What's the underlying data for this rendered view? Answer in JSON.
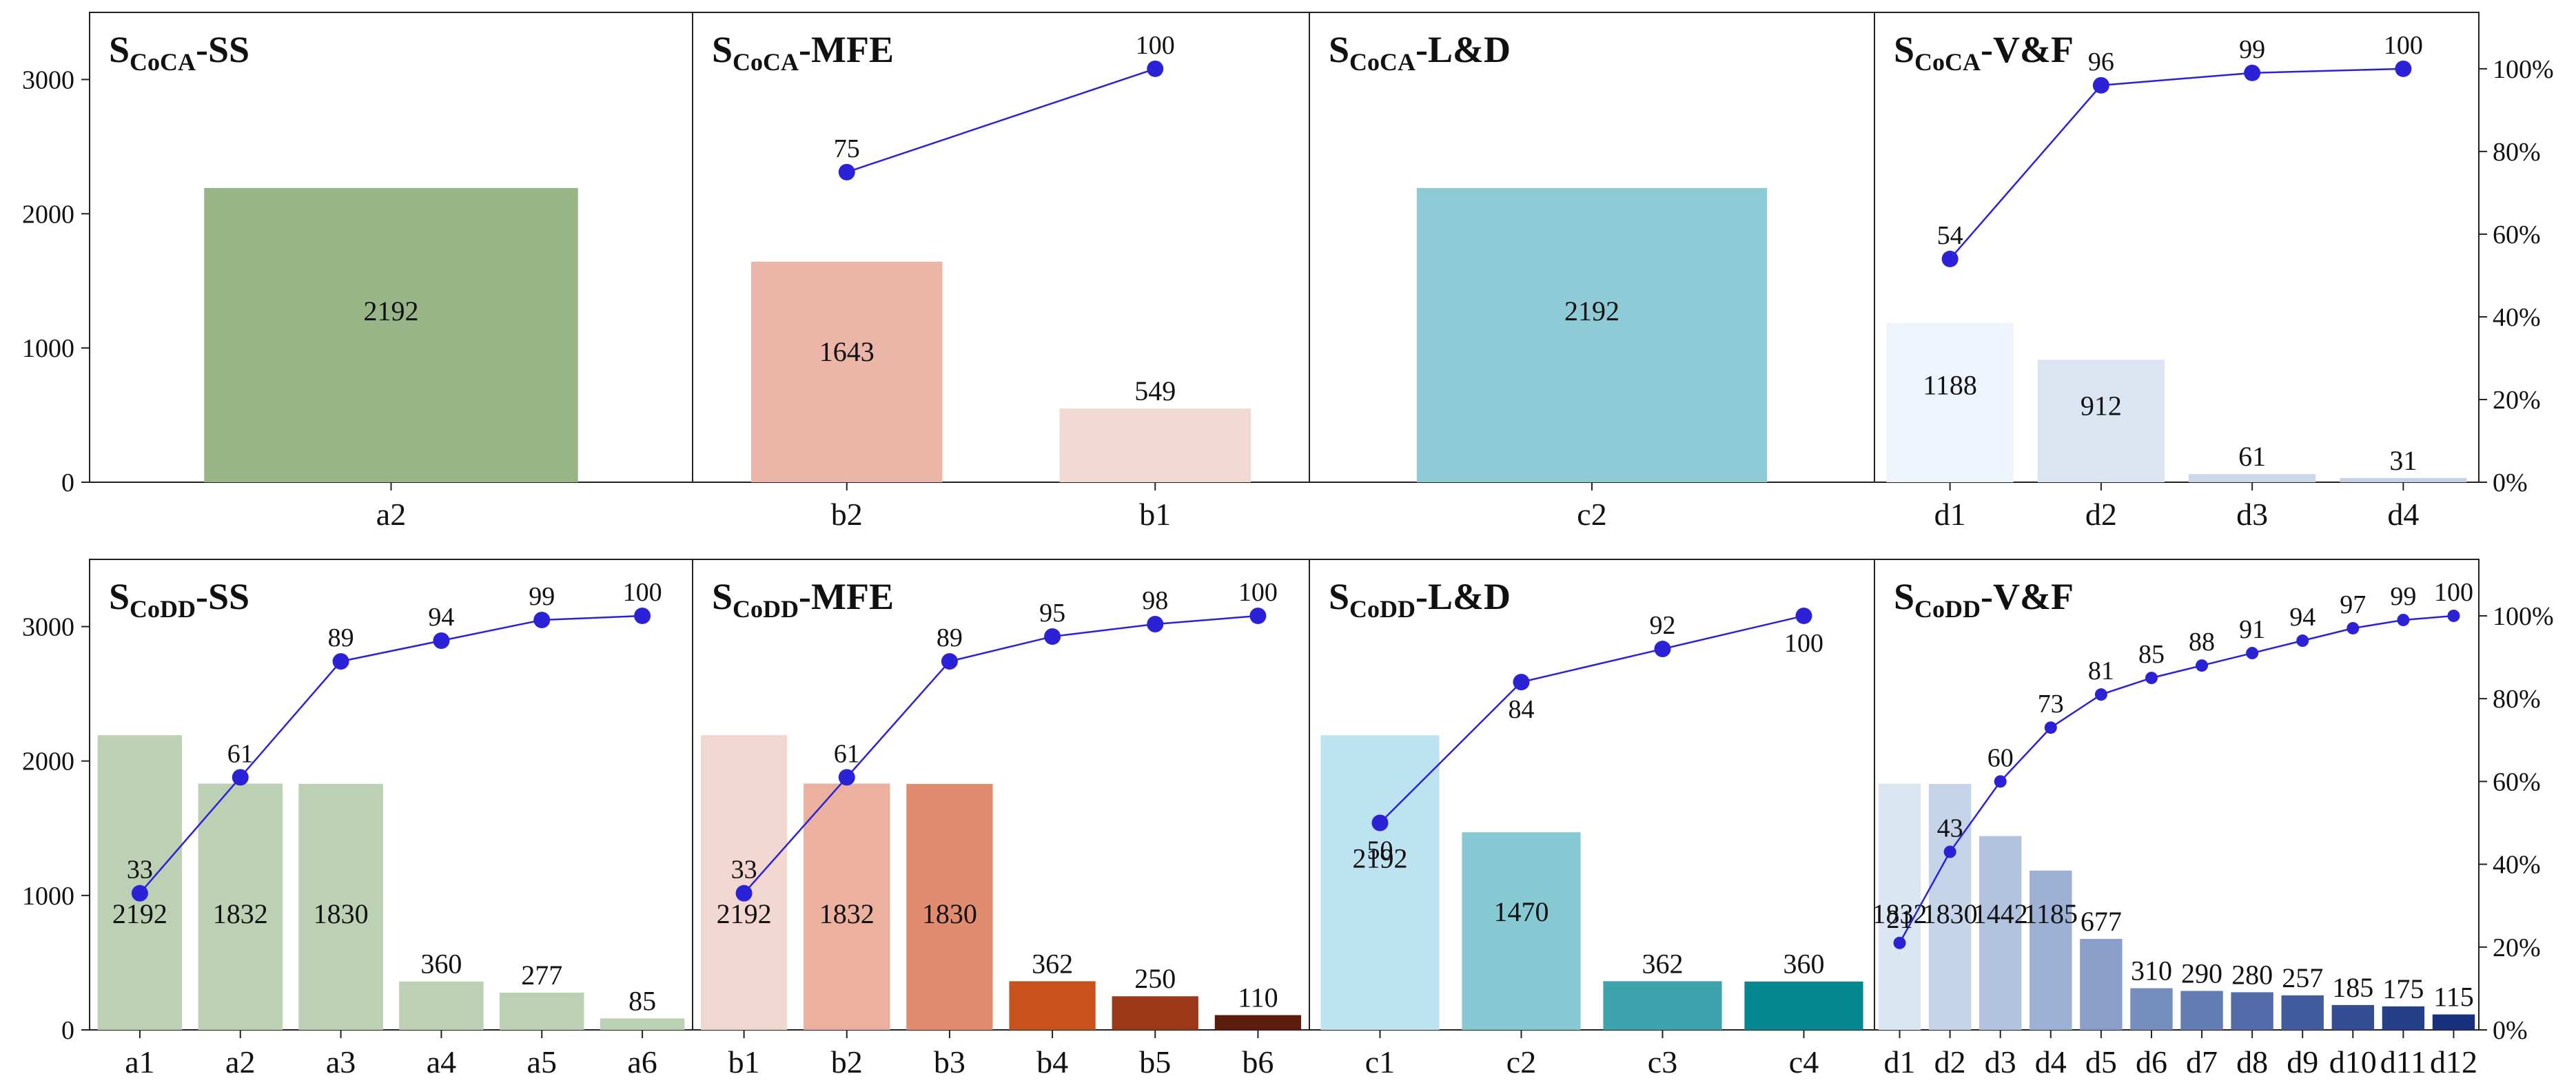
{
  "chart_data": [
    {
      "type": "bar",
      "title": "SCoCA-SS",
      "title_main": "S",
      "title_sub": "CoCA",
      "title_suffix": "-SS",
      "categories": [
        "a2"
      ],
      "values": [
        2192
      ],
      "cumulative_percent": [],
      "ylim": [
        0,
        3500
      ],
      "yticks": [
        "0",
        "1000",
        "2000",
        "3000"
      ],
      "colors": [
        "#97b586"
      ]
    },
    {
      "type": "bar",
      "title": "SCoCA-MFE",
      "title_main": "S",
      "title_sub": "CoCA",
      "title_suffix": "-MFE",
      "categories": [
        "b2",
        "b1"
      ],
      "values": [
        1643,
        549
      ],
      "cumulative_percent": [
        75,
        100
      ],
      "ylim": [
        0,
        3500
      ],
      "colors": [
        "#ebb6a7",
        "#f2d9d3"
      ]
    },
    {
      "type": "bar",
      "title": "SCoCA-L&D",
      "title_main": "S",
      "title_sub": "CoCA",
      "title_suffix": "-L&D",
      "categories": [
        "c2"
      ],
      "values": [
        2192
      ],
      "cumulative_percent": [],
      "ylim": [
        0,
        3500
      ],
      "colors": [
        "#8ecbd6"
      ]
    },
    {
      "type": "bar",
      "title": "SCoCA-V&F",
      "title_main": "S",
      "title_sub": "CoCA",
      "title_suffix": "-V&F",
      "categories": [
        "d1",
        "d2",
        "d3",
        "d4"
      ],
      "values": [
        1188,
        912,
        61,
        31
      ],
      "cumulative_percent": [
        54,
        96,
        99,
        100
      ],
      "ylim": [
        0,
        3500
      ],
      "y2ticks": [
        "0%",
        "20%",
        "40%",
        "60%",
        "80%",
        "100%"
      ],
      "colors": [
        "#eef4fb",
        "#dbe5f1",
        "#cdd9eb",
        "#c3d1e6"
      ]
    },
    {
      "type": "bar",
      "title": "SCoDD-SS",
      "title_main": "S",
      "title_sub": "CoDD",
      "title_suffix": "-SS",
      "categories": [
        "a1",
        "a2",
        "a3",
        "a4",
        "a5",
        "a6"
      ],
      "values": [
        2192,
        1832,
        1830,
        360,
        277,
        85
      ],
      "cumulative_percent": [
        33,
        61,
        89,
        94,
        99,
        100
      ],
      "ylim": [
        0,
        3500
      ],
      "yticks": [
        "0",
        "1000",
        "2000",
        "3000"
      ],
      "colors": [
        "#bcd1b3",
        "#bcd1b3",
        "#bcd1b3",
        "#bcd1b3",
        "#bcd1b3",
        "#bcd1b3"
      ]
    },
    {
      "type": "bar",
      "title": "SCoDD-MFE",
      "title_main": "S",
      "title_sub": "CoDD",
      "title_suffix": "-MFE",
      "categories": [
        "b1",
        "b2",
        "b3",
        "b4",
        "b5",
        "b6"
      ],
      "values": [
        2192,
        1832,
        1830,
        362,
        250,
        110
      ],
      "cumulative_percent": [
        33,
        61,
        89,
        95,
        98,
        100
      ],
      "ylim": [
        0,
        3500
      ],
      "colors": [
        "#f2d6d0",
        "#ebb09e",
        "#e28c6f",
        "#c9531e",
        "#9a3817",
        "#5c1d0c"
      ]
    },
    {
      "type": "bar",
      "title": "SCoDD-L&D",
      "title_main": "S",
      "title_sub": "CoDD",
      "title_suffix": "-L&D",
      "categories": [
        "c1",
        "c2",
        "c3",
        "c4"
      ],
      "values": [
        2192,
        1470,
        362,
        360
      ],
      "cumulative_percent": [
        50,
        84,
        92,
        100
      ],
      "ylim": [
        0,
        3500
      ],
      "colors": [
        "#bde3f0",
        "#87c9d3",
        "#3ea3ad",
        "#04878e"
      ]
    },
    {
      "type": "bar",
      "title": "SCoDD-V&F",
      "title_main": "S",
      "title_sub": "CoDD",
      "title_suffix": "-V&F",
      "categories": [
        "d1",
        "d2",
        "d3",
        "d4",
        "d5",
        "d6",
        "d7",
        "d8",
        "d9",
        "d10",
        "d11",
        "d12"
      ],
      "values": [
        1832,
        1830,
        1442,
        1185,
        677,
        310,
        290,
        280,
        257,
        185,
        175,
        115
      ],
      "cumulative_percent": [
        21,
        43,
        60,
        73,
        81,
        85,
        88,
        91,
        94,
        97,
        99,
        100
      ],
      "ylim": [
        0,
        3500
      ],
      "y2ticks": [
        "0%",
        "20%",
        "40%",
        "60%",
        "80%",
        "100%"
      ],
      "colors": [
        "#dbe6f3",
        "#c5d4e9",
        "#b1c3de",
        "#9db1d4",
        "#899fc9",
        "#768dbf",
        "#647cb4",
        "#536ca9",
        "#435c9e",
        "#344d93",
        "#253f88",
        "#17317d"
      ]
    }
  ]
}
